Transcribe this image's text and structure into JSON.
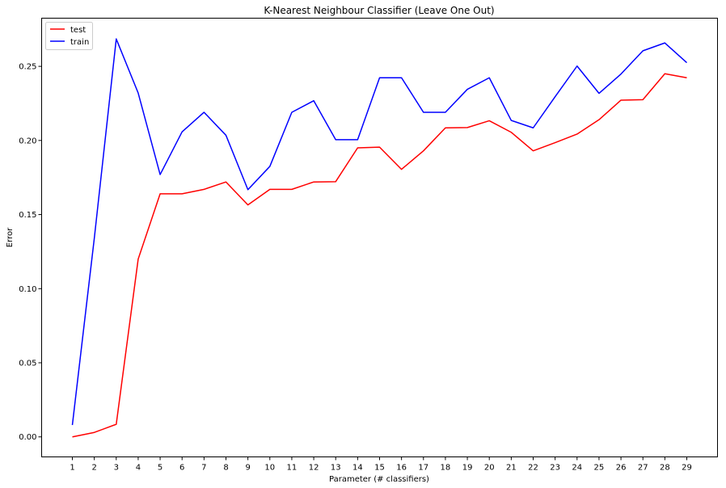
{
  "chart_data": {
    "type": "line",
    "title": "K-Nearest Neighbour Classifier (Leave One Out)",
    "xlabel": "Parameter (# classifiers)",
    "ylabel": "Error",
    "x": [
      1,
      2,
      3,
      4,
      5,
      6,
      7,
      8,
      9,
      10,
      11,
      12,
      13,
      14,
      15,
      16,
      17,
      18,
      19,
      20,
      21,
      22,
      23,
      24,
      25,
      26,
      27,
      28,
      29
    ],
    "xlim": [
      -0.4,
      30.4
    ],
    "ylim": [
      -0.0135,
      0.2825
    ],
    "yticks": [
      0.0,
      0.05,
      0.1,
      0.15,
      0.2,
      0.25
    ],
    "ytick_labels": [
      "0.00",
      "0.05",
      "0.10",
      "0.15",
      "0.20",
      "0.25"
    ],
    "grid": false,
    "legend_position": "top-left",
    "series": [
      {
        "name": "test",
        "color": "#ff0000",
        "values": [
          0.0,
          0.003,
          0.0085,
          0.12,
          0.164,
          0.164,
          0.167,
          0.172,
          0.1565,
          0.167,
          0.167,
          0.172,
          0.1722,
          0.195,
          0.1955,
          0.1805,
          0.193,
          0.2085,
          0.2087,
          0.2133,
          0.2055,
          0.193,
          0.1985,
          0.2043,
          0.214,
          0.2272,
          0.2275,
          0.245,
          0.2423
        ]
      },
      {
        "name": "train",
        "color": "#0000ff",
        "values": [
          0.008,
          0.134,
          0.2685,
          0.232,
          0.177,
          0.2058,
          0.219,
          0.2035,
          0.1668,
          0.1825,
          0.219,
          0.2268,
          0.2005,
          0.2005,
          0.2423,
          0.2423,
          0.219,
          0.219,
          0.2345,
          0.2423,
          0.2135,
          0.2085,
          0.2295,
          0.2502,
          0.2318,
          0.2448,
          0.2605,
          0.2658,
          0.2525
        ]
      }
    ]
  }
}
